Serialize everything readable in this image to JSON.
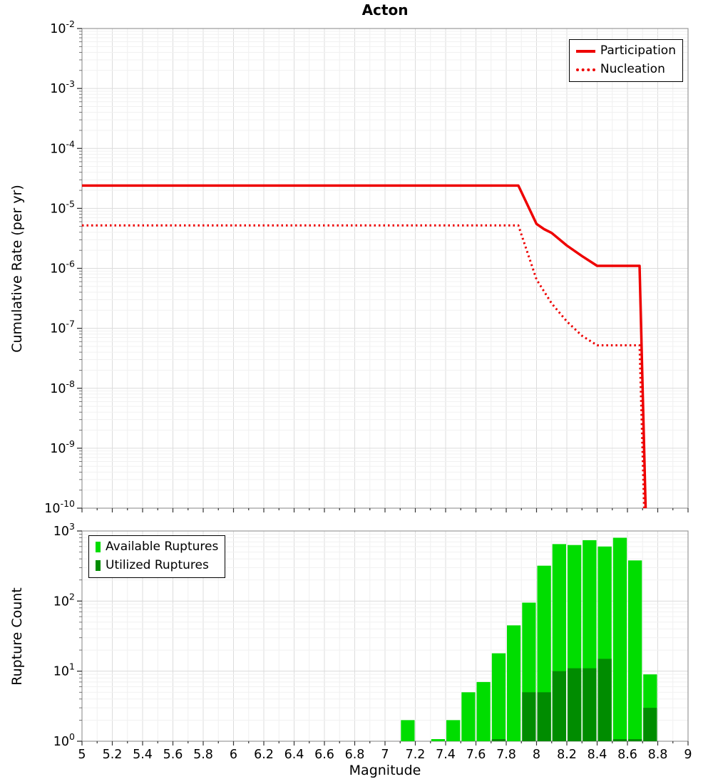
{
  "title": "Acton",
  "chart_data": [
    {
      "type": "line",
      "title": "Acton",
      "ylabel": "Cumulative Rate (per yr)",
      "xlabel": "",
      "xlim": [
        5,
        9
      ],
      "y_exp_range": [
        -2,
        -10
      ],
      "y_ticks_exp": [
        -2,
        -3,
        -4,
        -5,
        -6,
        -7,
        -8,
        -9,
        -10
      ],
      "grid": true,
      "legend_position": "top-right",
      "series": [
        {
          "name": "Participation",
          "color": "#ee0000",
          "dash": "solid",
          "width": 3.5,
          "points": [
            [
              5.0,
              2.4e-05
            ],
            [
              7.88,
              2.4e-05
            ],
            [
              8.0,
              5.5e-06
            ],
            [
              8.05,
              4.5e-06
            ],
            [
              8.1,
              3.9e-06
            ],
            [
              8.2,
              2.4e-06
            ],
            [
              8.3,
              1.6e-06
            ],
            [
              8.4,
              1.1e-06
            ],
            [
              8.68,
              1.1e-06
            ],
            [
              8.72,
              1e-10
            ]
          ]
        },
        {
          "name": "Nucleation",
          "color": "#ee0000",
          "dash": "dotted",
          "width": 3,
          "points": [
            [
              5.0,
              5.2e-06
            ],
            [
              7.88,
              5.2e-06
            ],
            [
              8.0,
              6.5e-07
            ],
            [
              8.1,
              2.6e-07
            ],
            [
              8.2,
              1.3e-07
            ],
            [
              8.3,
              7.5e-08
            ],
            [
              8.4,
              5.2e-08
            ],
            [
              8.68,
              5.2e-08
            ],
            [
              8.71,
              1e-10
            ]
          ]
        }
      ]
    },
    {
      "type": "bar",
      "ylabel": "Rupture Count",
      "xlabel": "Magnitude",
      "xlim": [
        5,
        9
      ],
      "y_exp_range": [
        3,
        0
      ],
      "y_ticks_exp": [
        0,
        1,
        2,
        3
      ],
      "bin_width": 0.1,
      "grid": true,
      "legend_position": "top-left",
      "x_ticks": [
        "5",
        "5.2",
        "5.4",
        "5.6",
        "5.8",
        "6",
        "6.2",
        "6.4",
        "6.6",
        "6.8",
        "7",
        "7.2",
        "7.4",
        "7.6",
        "7.8",
        "8",
        "8.2",
        "8.4",
        "8.6",
        "8.8",
        "9"
      ],
      "series": [
        {
          "name": "Available Ruptures",
          "color": "#00dd00",
          "centers": [
            7.15,
            7.35,
            7.45,
            7.55,
            7.65,
            7.75,
            7.85,
            7.95,
            8.05,
            8.15,
            8.25,
            8.35,
            8.45,
            8.55,
            8.65,
            8.75
          ],
          "values": [
            2,
            1,
            2,
            5,
            7,
            18,
            45,
            95,
            320,
            650,
            630,
            740,
            600,
            800,
            380,
            9
          ]
        },
        {
          "name": "Utilized Ruptures",
          "color": "#008c00",
          "centers": [
            7.75,
            7.95,
            8.05,
            8.15,
            8.25,
            8.35,
            8.45,
            8.55,
            8.65,
            8.75
          ],
          "values": [
            1,
            5,
            5,
            10,
            11,
            11,
            15,
            1,
            1,
            3
          ]
        }
      ]
    }
  ]
}
